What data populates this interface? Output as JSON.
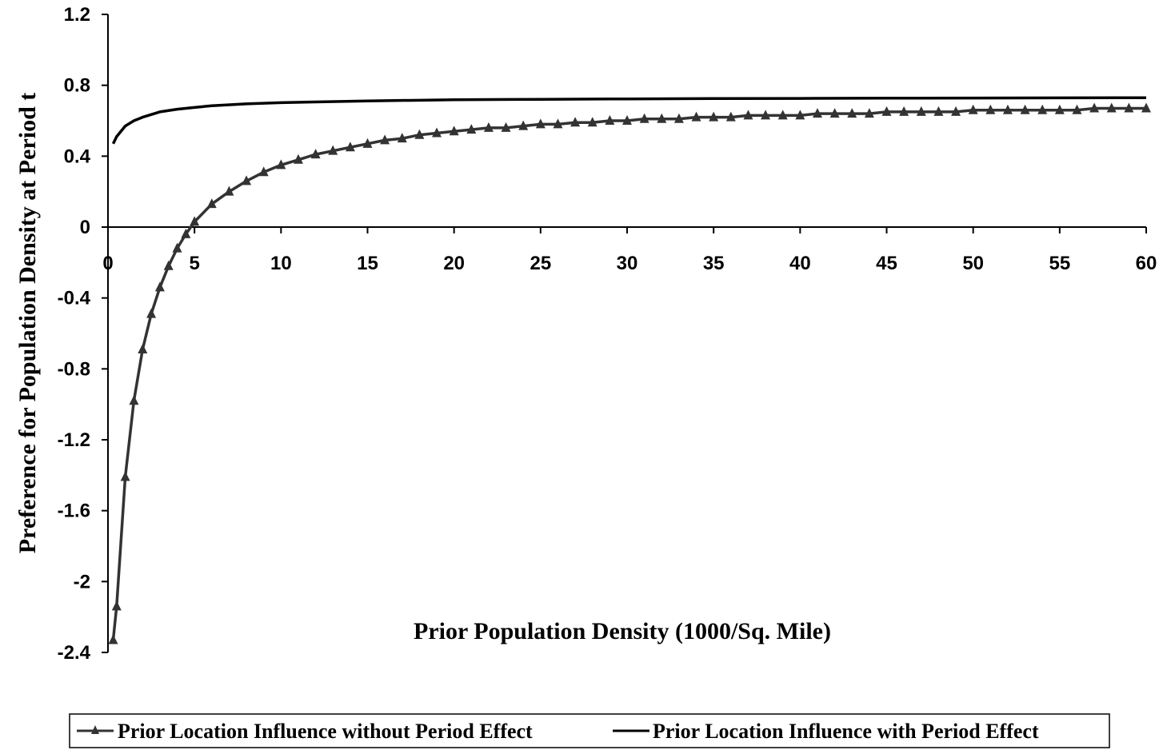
{
  "chart_data": {
    "type": "line",
    "title": "",
    "xlabel": "Prior Population Density (1000/Sq. Mile)",
    "ylabel": "Preference for Population Density at Period t",
    "xlim": [
      0,
      60
    ],
    "ylim": [
      -2.4,
      1.2
    ],
    "x_ticks": [
      "0",
      "5",
      "10",
      "15",
      "20",
      "25",
      "30",
      "35",
      "40",
      "45",
      "50",
      "55",
      "60"
    ],
    "y_ticks": [
      "1.2",
      "0.8",
      "0.4",
      "0",
      "-0.4",
      "-0.8",
      "-1.2",
      "-1.6",
      "-2",
      "-2.4"
    ],
    "grid": false,
    "legend_position": "bottom",
    "series": [
      {
        "name": "Prior Location Influence without Period Effect",
        "marker": "triangle",
        "color": "#333333",
        "x": [
          0.3,
          0.5,
          1,
          1.5,
          2,
          2.5,
          3,
          3.5,
          4,
          4.5,
          5,
          6,
          7,
          8,
          9,
          10,
          11,
          12,
          13,
          14,
          15,
          16,
          17,
          18,
          19,
          20,
          21,
          22,
          23,
          24,
          25,
          26,
          27,
          28,
          29,
          30,
          31,
          32,
          33,
          34,
          35,
          36,
          37,
          38,
          39,
          40,
          41,
          42,
          43,
          44,
          45,
          46,
          47,
          48,
          49,
          50,
          51,
          52,
          53,
          54,
          55,
          56,
          57,
          58,
          59,
          60
        ],
        "y": [
          -2.33,
          -2.14,
          -1.41,
          -0.98,
          -0.69,
          -0.49,
          -0.34,
          -0.22,
          -0.12,
          -0.04,
          0.03,
          0.13,
          0.2,
          0.26,
          0.31,
          0.35,
          0.38,
          0.41,
          0.43,
          0.45,
          0.47,
          0.49,
          0.5,
          0.52,
          0.53,
          0.54,
          0.55,
          0.56,
          0.56,
          0.57,
          0.58,
          0.58,
          0.59,
          0.59,
          0.6,
          0.6,
          0.61,
          0.61,
          0.61,
          0.62,
          0.62,
          0.62,
          0.63,
          0.63,
          0.63,
          0.63,
          0.64,
          0.64,
          0.64,
          0.64,
          0.65,
          0.65,
          0.65,
          0.65,
          0.65,
          0.66,
          0.66,
          0.66,
          0.66,
          0.66,
          0.66,
          0.66,
          0.67,
          0.67,
          0.67,
          0.67
        ]
      },
      {
        "name": "Prior Location Influence with Period Effect",
        "marker": "none",
        "color": "#000000",
        "x": [
          0.3,
          0.5,
          1,
          1.5,
          2,
          3,
          4,
          5,
          6,
          8,
          10,
          15,
          20,
          25,
          30,
          35,
          40,
          45,
          50,
          55,
          60
        ],
        "y": [
          0.47,
          0.51,
          0.57,
          0.6,
          0.62,
          0.65,
          0.665,
          0.675,
          0.685,
          0.695,
          0.702,
          0.712,
          0.718,
          0.721,
          0.723,
          0.725,
          0.726,
          0.727,
          0.728,
          0.729,
          0.73
        ]
      }
    ]
  }
}
